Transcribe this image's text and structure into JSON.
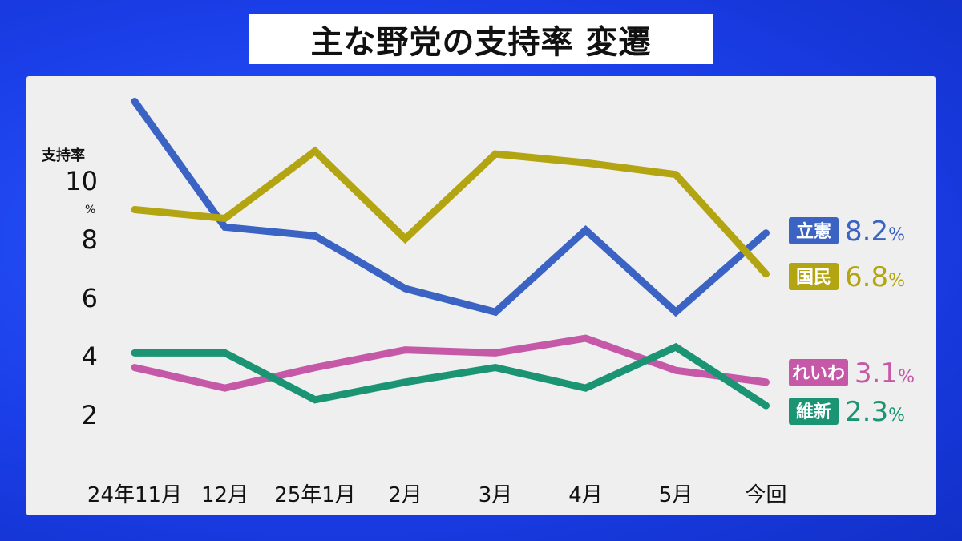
{
  "title": "主な野党の支持率 変遷",
  "chart_data": {
    "type": "line",
    "ylabel": "支持率",
    "yunit": "%",
    "ylim": [
      0,
      13
    ],
    "yticks": [
      2,
      4,
      6,
      8,
      10
    ],
    "categories": [
      "24年11月",
      "12月",
      "25年1月",
      "2月",
      "3月",
      "4月",
      "5月",
      "今回"
    ],
    "series": [
      {
        "name": "立憲",
        "color": "#3a63c4",
        "values": [
          12.7,
          8.4,
          8.1,
          6.3,
          5.5,
          8.3,
          5.5,
          8.2
        ],
        "label": "8.2"
      },
      {
        "name": "国民",
        "color": "#b3a512",
        "values": [
          9.0,
          8.7,
          11.0,
          8.0,
          10.9,
          10.6,
          10.2,
          6.8
        ],
        "label": "6.8"
      },
      {
        "name": "れいわ",
        "color": "#c658a8",
        "values": [
          3.6,
          2.9,
          3.6,
          4.2,
          4.1,
          4.6,
          3.5,
          3.1
        ],
        "label": "3.1"
      },
      {
        "name": "維新",
        "color": "#1a9473",
        "values": [
          4.1,
          4.1,
          2.5,
          3.1,
          3.6,
          2.9,
          4.3,
          2.3
        ],
        "label": "2.3"
      }
    ]
  }
}
